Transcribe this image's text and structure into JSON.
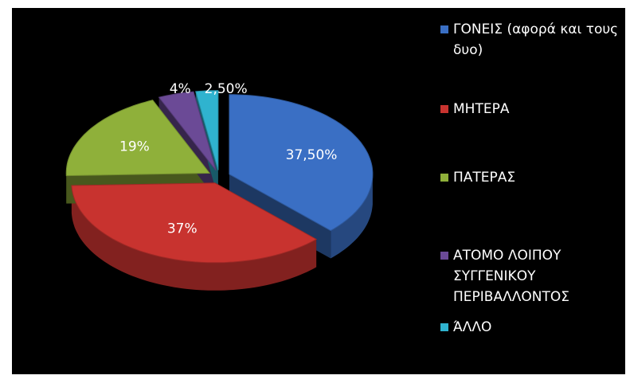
{
  "chart_data": {
    "type": "pie",
    "categories": [
      "ΓΟΝΕΙΣ (αφορά και τους δυο)",
      "ΜΗΤΕΡΑ",
      "ΠΑΤΕΡΑΣ",
      "ΑΤΟΜΟ ΛΟΙΠΟΥ ΣΥΓΓΕΝΙΚΟΥ ΠΕΡΙΒΑΛΛΟΝΤΟΣ",
      "ΆΛΛΟ"
    ],
    "values": [
      37.5,
      37,
      19,
      4,
      2.5
    ],
    "value_labels": [
      "37,50%",
      "37%",
      "19%",
      "4%",
      "2,50%"
    ],
    "colors": [
      "#3a6fc4",
      "#c8332f",
      "#8fb03a",
      "#6b4a96",
      "#2fb3cf"
    ],
    "legend": "right"
  }
}
